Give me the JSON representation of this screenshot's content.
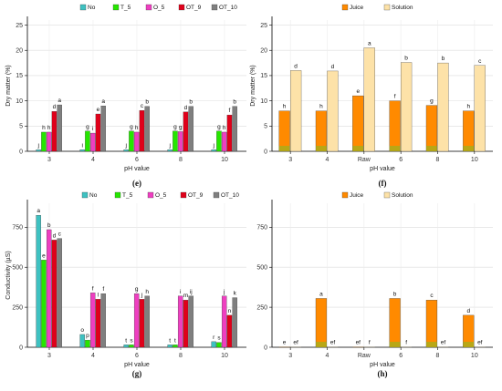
{
  "colors": {
    "No": "#3ec1c1",
    "T_5": "#26e600",
    "O_5": "#ee3fc0",
    "OT_9": "#e0001a",
    "OT_10": "#7f7f7f",
    "Juice": "#ff8a00",
    "Juice_base": "#7fbf26",
    "Solution": "#fde2a8",
    "grid": "#dcdcdc"
  },
  "chart_data": [
    {
      "id": "e",
      "type": "bar",
      "panel_label": "(e)",
      "legend": [
        "No",
        "T_5",
        "O_5",
        "OT_9",
        "OT_10"
      ],
      "legend_position": "top",
      "xlabel": "pH value",
      "ylabel": "Dry matter (%)",
      "ylim": [
        0,
        26
      ],
      "yticks": [
        0,
        5,
        10,
        15,
        20,
        25
      ],
      "categories": [
        "3",
        "4",
        "6",
        "8",
        "10"
      ],
      "series": [
        {
          "name": "No",
          "values": [
            0.3,
            0.3,
            0.3,
            0.3,
            0.3
          ],
          "labels": [
            "j",
            "i",
            "j",
            "j",
            "j"
          ]
        },
        {
          "name": "T_5",
          "values": [
            3.8,
            4.0,
            4.0,
            4.0,
            4.0
          ],
          "labels": [
            "h",
            "g",
            "g",
            "g",
            "g"
          ]
        },
        {
          "name": "O_5",
          "values": [
            3.8,
            3.6,
            3.8,
            3.9,
            3.8
          ],
          "labels": [
            "h",
            "i",
            "h",
            "g",
            "h"
          ]
        },
        {
          "name": "OT_9",
          "values": [
            7.9,
            7.4,
            8.1,
            7.8,
            7.2
          ],
          "labels": [
            "d",
            "e",
            "c",
            "d",
            "f"
          ]
        },
        {
          "name": "OT_10",
          "values": [
            9.2,
            9.0,
            8.9,
            8.9,
            8.9
          ],
          "labels": [
            "a",
            "a",
            "b",
            "b",
            "b"
          ]
        }
      ]
    },
    {
      "id": "f",
      "type": "bar",
      "panel_label": "(f)",
      "legend": [
        "Juice",
        "Solution"
      ],
      "legend_position": "top",
      "xlabel": "pH value",
      "ylabel": "Dry matter (%)",
      "ylim": [
        0,
        26
      ],
      "yticks": [
        0,
        5,
        10,
        15,
        20,
        25
      ],
      "categories": [
        "3",
        "4",
        "Raw",
        "6",
        "8",
        "10"
      ],
      "series": [
        {
          "name": "Juice",
          "values": [
            8.0,
            8.0,
            11.0,
            10.0,
            9.1,
            8.0
          ],
          "labels": [
            "h",
            "h",
            "e",
            "f",
            "g",
            "h"
          ]
        },
        {
          "name": "Solution",
          "values": [
            16.0,
            15.9,
            20.5,
            17.6,
            17.5,
            17.0
          ],
          "labels": [
            "d",
            "d",
            "a",
            "b",
            "b",
            "c"
          ]
        }
      ]
    },
    {
      "id": "g",
      "type": "bar",
      "panel_label": "(g)",
      "legend": [
        "No",
        "T_5",
        "O_5",
        "OT_9",
        "OT_10"
      ],
      "legend_position": "top",
      "xlabel": "pH value",
      "ylabel": "Conductivity (µS)",
      "ylim": [
        0,
        900
      ],
      "yticks": [
        0,
        250,
        500,
        750
      ],
      "categories": [
        "3",
        "4",
        "6",
        "8",
        "10"
      ],
      "series": [
        {
          "name": "No",
          "values": [
            825,
            80,
            15,
            15,
            35
          ],
          "labels": [
            "a",
            "o",
            "t",
            "t",
            "r"
          ]
        },
        {
          "name": "T_5",
          "values": [
            545,
            45,
            15,
            15,
            30
          ],
          "labels": [
            "e",
            "p",
            "s",
            "t",
            "s"
          ]
        },
        {
          "name": "O_5",
          "values": [
            735,
            340,
            335,
            320,
            320
          ],
          "labels": [
            "b",
            "f",
            "g",
            "i",
            "j"
          ]
        },
        {
          "name": "OT_9",
          "values": [
            670,
            300,
            300,
            295,
            200
          ],
          "labels": [
            "d",
            "l",
            "j",
            "m",
            "n"
          ]
        },
        {
          "name": "OT_10",
          "values": [
            680,
            335,
            320,
            320,
            310
          ],
          "labels": [
            "c",
            "f",
            "h",
            "ij",
            "k"
          ]
        }
      ]
    },
    {
      "id": "h",
      "type": "bar",
      "panel_label": "(h)",
      "legend": [
        "Juice",
        "Solution"
      ],
      "legend_position": "top",
      "xlabel": "pH value",
      "ylabel": "",
      "ylim": [
        0,
        900
      ],
      "yticks": [
        0,
        250,
        500,
        750
      ],
      "categories": [
        "3",
        "4",
        "Raw",
        "6",
        "8",
        "10"
      ],
      "series": [
        {
          "name": "Juice",
          "values": [
            2,
            305,
            2,
            305,
            295,
            200
          ],
          "labels": [
            "e",
            "a",
            "ef",
            "b",
            "c",
            "d"
          ]
        },
        {
          "name": "Solution",
          "values": [
            2,
            2,
            2,
            2,
            2,
            2
          ],
          "labels": [
            "ef",
            "ef",
            "f",
            "f",
            "ef",
            "ef"
          ]
        }
      ]
    }
  ]
}
